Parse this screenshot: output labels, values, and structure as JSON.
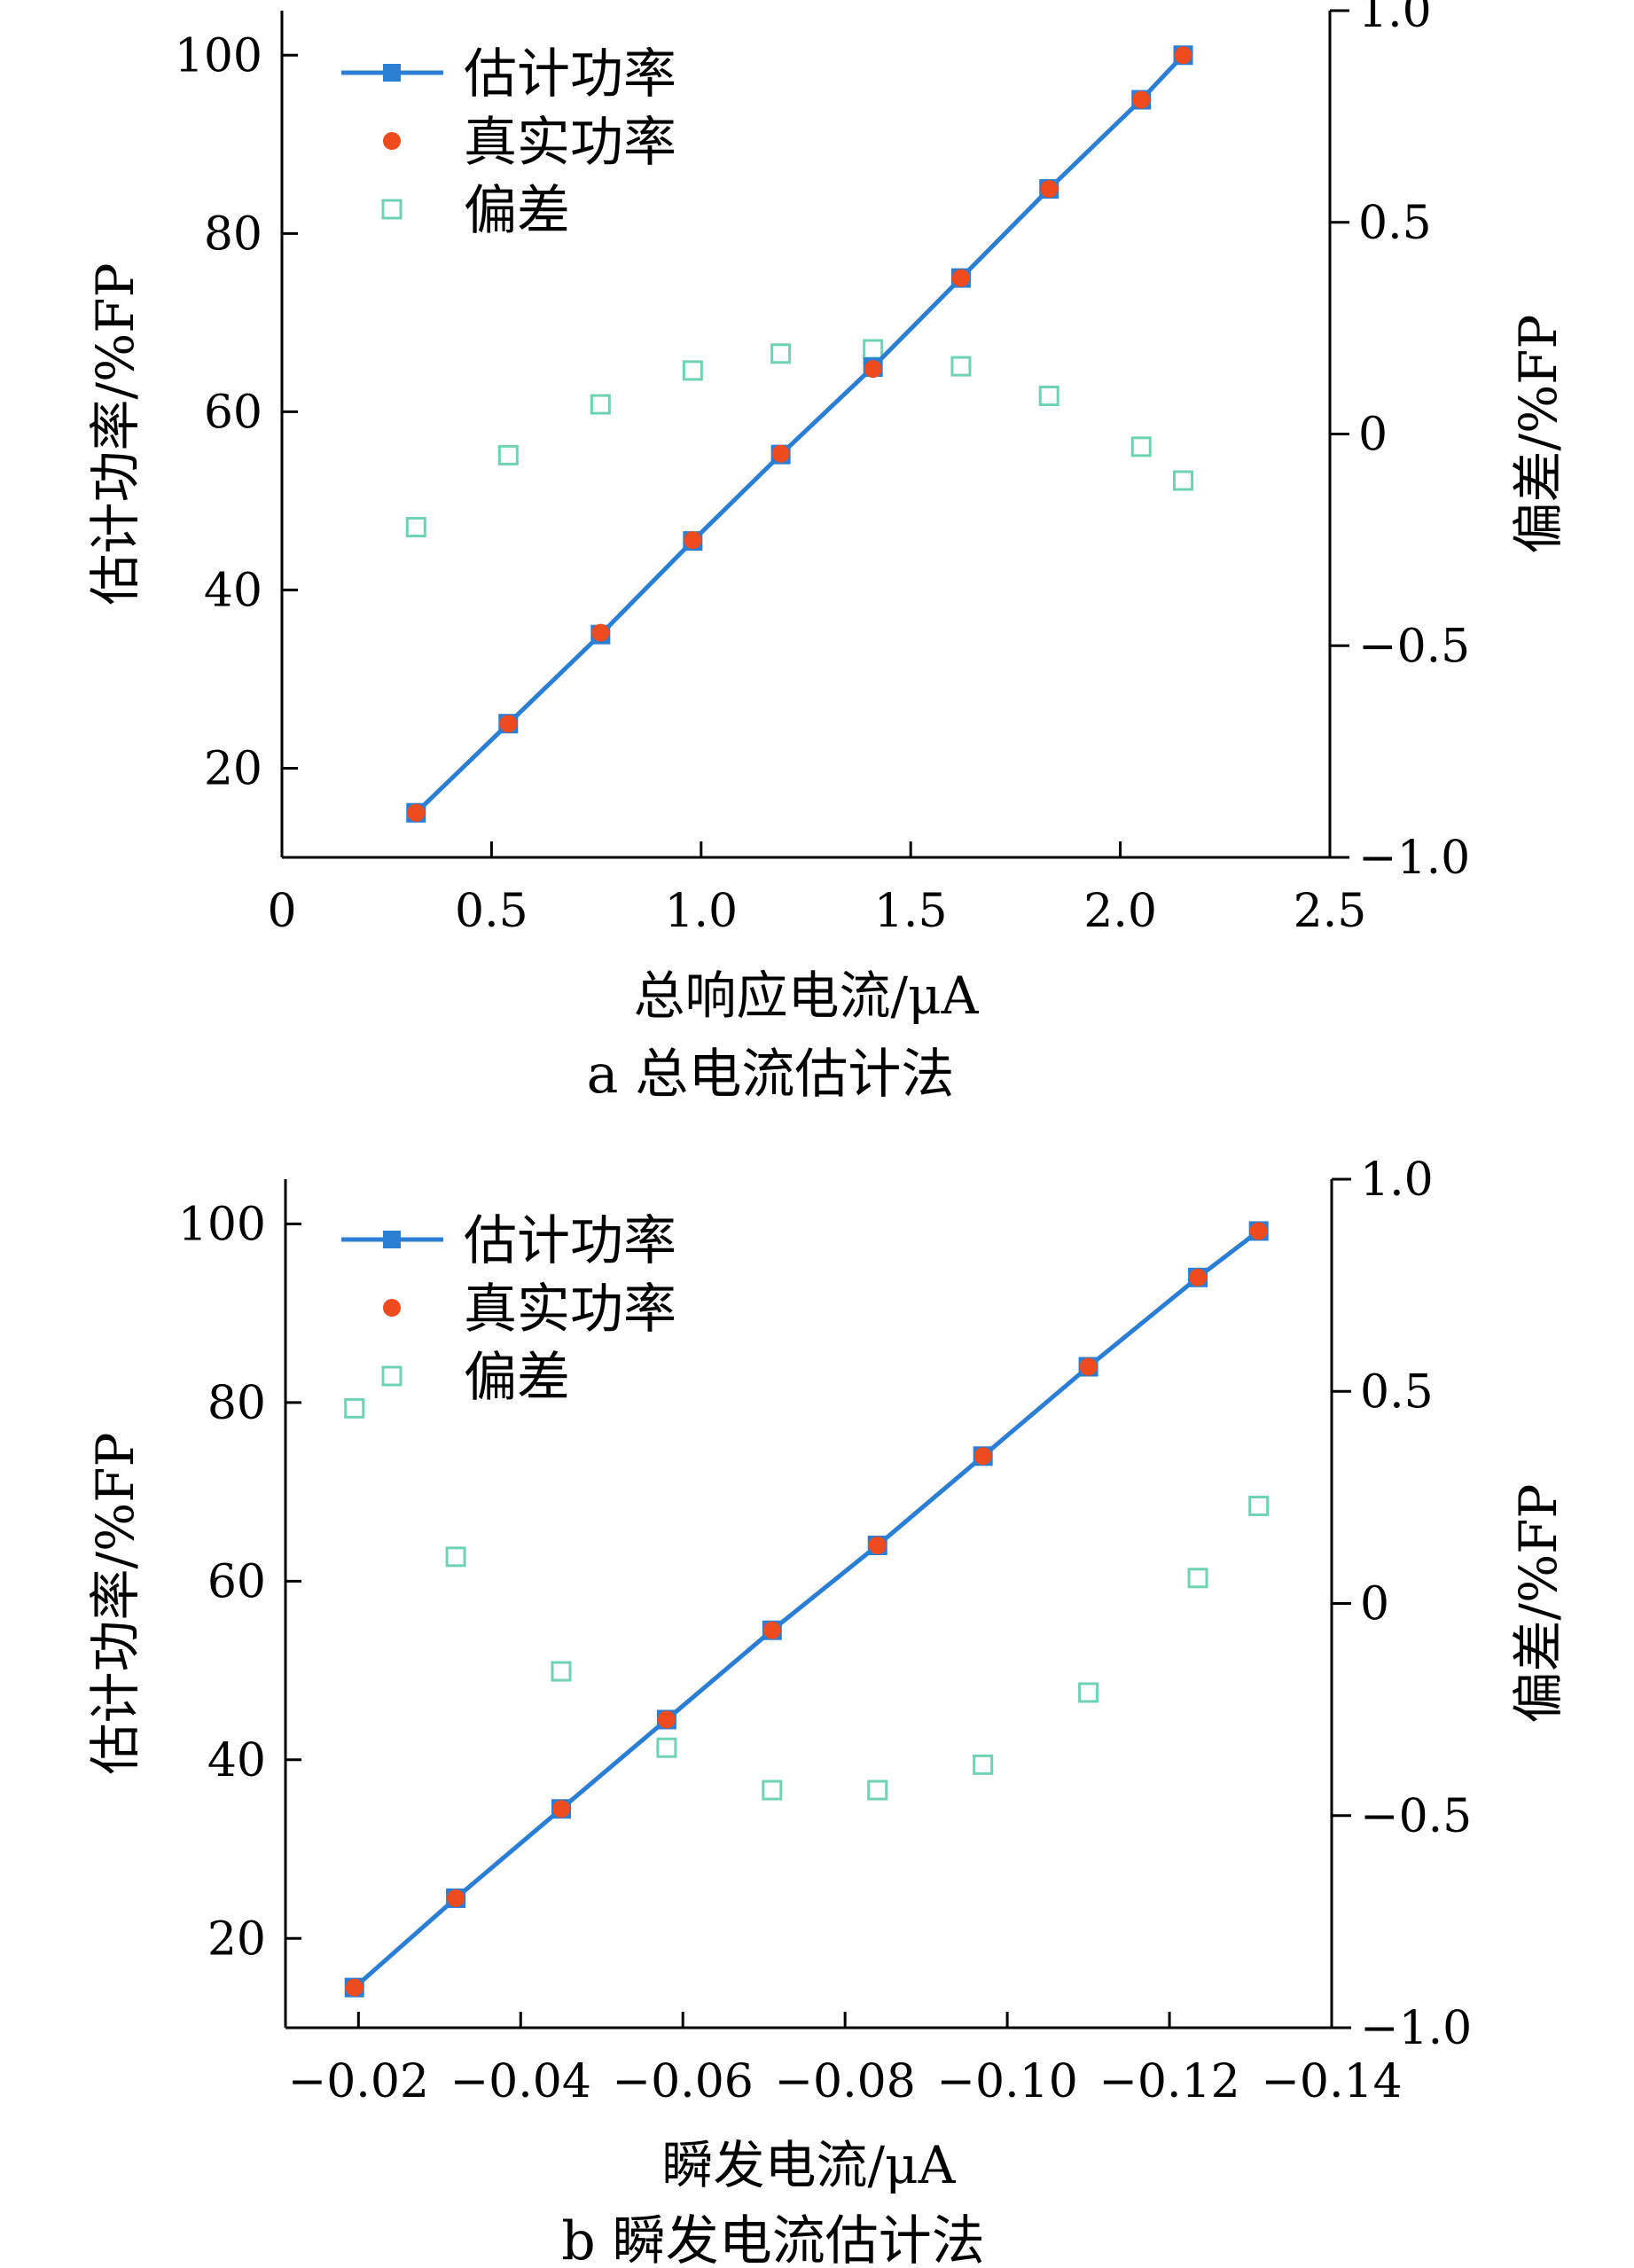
{
  "colors": {
    "estimated": "#2a7fd4",
    "actual": "#ee4b1f",
    "deviation": "#6fd2b4",
    "axis": "#000000"
  },
  "chart_data": [
    {
      "type": "line",
      "caption": "a  总电流估计法",
      "xlabel": "总响应电流/μA",
      "ylabel": "估计功率/%FP",
      "y2label": "偏差/%FP",
      "xlim": [
        0,
        2.5
      ],
      "ylim": [
        10,
        105
      ],
      "y2lim": [
        -1.0,
        1.0
      ],
      "x_ticks": [
        "0",
        "0.5",
        "1.0",
        "1.5",
        "2.0",
        "2.5"
      ],
      "y_ticks": [
        "20",
        "40",
        "60",
        "80",
        "100"
      ],
      "y2_ticks": [
        "−1.0",
        "−0.5",
        "0",
        "0.5",
        "1.0"
      ],
      "legend": {
        "position": "top-left",
        "entries": [
          "估计功率",
          "真实功率",
          "偏差"
        ]
      },
      "x": [
        0.32,
        0.54,
        0.76,
        0.98,
        1.19,
        1.41,
        1.62,
        1.83,
        2.05,
        2.15
      ],
      "series": [
        {
          "name": "估计功率",
          "axis": "left",
          "marker": "square-line",
          "values": [
            15,
            25,
            35,
            45.5,
            55.2,
            65,
            75,
            85,
            95,
            100
          ]
        },
        {
          "name": "真实功率",
          "axis": "left",
          "marker": "dot",
          "values": [
            15,
            25,
            35.2,
            45.6,
            55.3,
            64.8,
            75,
            85,
            95,
            100
          ]
        },
        {
          "name": "偏差",
          "axis": "right",
          "marker": "open-square",
          "values": [
            -0.22,
            -0.05,
            0.07,
            0.15,
            0.19,
            0.2,
            0.16,
            0.09,
            -0.03,
            -0.11
          ]
        }
      ]
    },
    {
      "type": "line",
      "caption": "b  瞬发电流估计法",
      "xlabel": "瞬发电流/μA",
      "ylabel": "估计功率/%FP",
      "y2label": "偏差/%FP",
      "xlim": [
        -0.011,
        -0.14
      ],
      "ylim": [
        10,
        105
      ],
      "y2lim": [
        -1.0,
        1.0
      ],
      "x_ticks": [
        "−0.02",
        "−0.04",
        "−0.06",
        "−0.08",
        "−0.10",
        "−0.12",
        "−0.14"
      ],
      "y_ticks": [
        "20",
        "40",
        "60",
        "80",
        "100"
      ],
      "y2_ticks": [
        "−1.0",
        "−0.5",
        "0",
        "0.5",
        "1.0"
      ],
      "legend": {
        "position": "top-left",
        "entries": [
          "估计功率",
          "真实功率",
          "偏差"
        ]
      },
      "x": [
        -0.0195,
        -0.032,
        -0.045,
        -0.058,
        -0.071,
        -0.084,
        -0.097,
        -0.11,
        -0.1235,
        -0.131
      ],
      "series": [
        {
          "name": "估计功率",
          "axis": "left",
          "marker": "square-line",
          "values": [
            14.5,
            24.5,
            34.5,
            44.5,
            54.5,
            64,
            74,
            84,
            94,
            99.2
          ]
        },
        {
          "name": "真实功率",
          "axis": "left",
          "marker": "dot",
          "values": [
            14.5,
            24.5,
            34.5,
            44.5,
            54.5,
            64,
            74,
            84,
            94,
            99.2
          ]
        },
        {
          "name": "偏差",
          "axis": "right",
          "marker": "open-square",
          "values": [
            0.46,
            0.11,
            -0.16,
            -0.34,
            -0.44,
            -0.44,
            -0.38,
            -0.21,
            0.06,
            0.23
          ]
        }
      ]
    }
  ]
}
